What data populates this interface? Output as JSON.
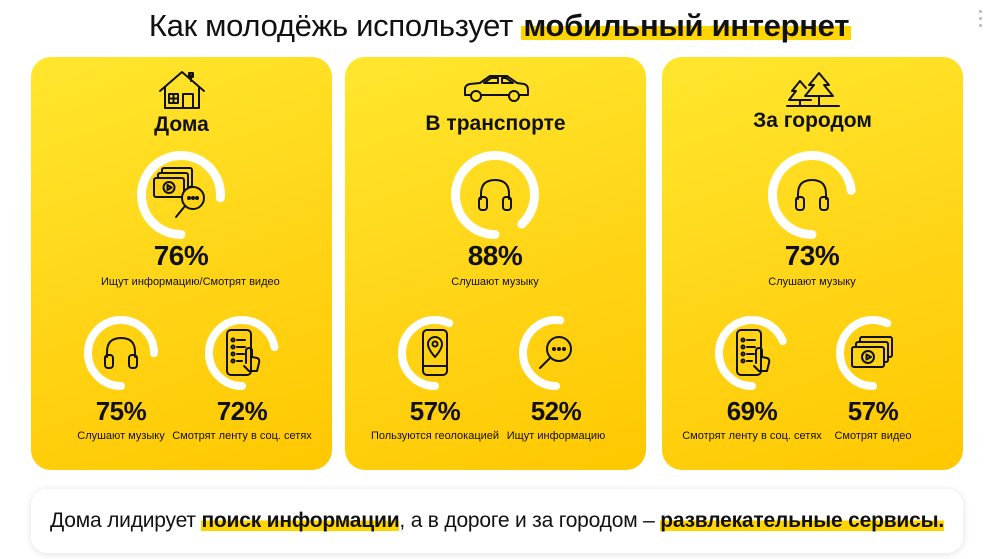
{
  "title": {
    "prefix": "Как молодёжь использует",
    "highlight": "мобильный интернет"
  },
  "colors": {
    "card_yellow": "#ffd416",
    "accent_yellow": "#ffd500",
    "ring_white": "#ffffff",
    "text": "#111111"
  },
  "cards": [
    {
      "title": "Дома",
      "icon": "house-icon",
      "main": {
        "value": "76%",
        "label": "Ищут информацию/Смотрят видео",
        "percent": 76,
        "icon": "video-search-icon"
      },
      "left": {
        "value": "75%",
        "label": "Слушают музыку",
        "percent": 75,
        "icon": "headphones-icon"
      },
      "right": {
        "value": "72%",
        "label": "Смотрят ленту в соц. сетях",
        "percent": 72,
        "icon": "phone-feed-icon"
      }
    },
    {
      "title": "В транспорте",
      "icon": "car-icon",
      "main": {
        "value": "88%",
        "label": "Слушают музыку",
        "percent": 88,
        "icon": "headphones-icon"
      },
      "left": {
        "value": "57%",
        "label": "Пользуются геолокацией",
        "percent": 57,
        "icon": "phone-location-icon"
      },
      "right": {
        "value": "52%",
        "label": "Ищут информацию",
        "percent": 52,
        "icon": "magnifier-icon"
      }
    },
    {
      "title": "За городом",
      "icon": "trees-icon",
      "main": {
        "value": "73%",
        "label": "Слушают музыку",
        "percent": 73,
        "icon": "headphones-icon"
      },
      "left": {
        "value": "69%",
        "label": "Смотрят ленту в соц. сетях",
        "percent": 69,
        "icon": "phone-feed-icon"
      },
      "right": {
        "value": "57%",
        "label": "Смотрят видео",
        "percent": 57,
        "icon": "video-icon"
      }
    }
  ],
  "bottom": {
    "part1": "Дома лидирует ",
    "highlight1": "поиск информации",
    "part2": ", а в дороге и за городом – ",
    "highlight2": "развлекательные сервисы."
  }
}
